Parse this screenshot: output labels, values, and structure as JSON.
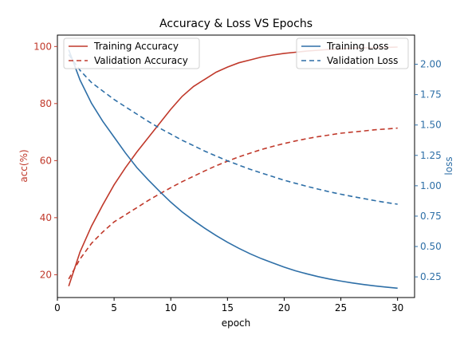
{
  "chart_data": {
    "type": "line",
    "title": "Accuracy & Loss VS Epochs",
    "xlabel": "epoch",
    "ylabel_left": "acc(%)",
    "ylabel_right": "loss",
    "xlim": [
      0,
      31.5
    ],
    "ylim_left": [
      12,
      104
    ],
    "ylim_right": [
      0.08,
      2.24
    ],
    "xticks": [
      0,
      5,
      10,
      15,
      20,
      25,
      30
    ],
    "yticks_left": [
      20,
      40,
      60,
      80,
      100
    ],
    "yticks_right": [
      0.25,
      0.5,
      0.75,
      1.0,
      1.25,
      1.5,
      1.75,
      2.0
    ],
    "yticks_right_labels": [
      "0.25",
      "0.50",
      "0.75",
      "1.00",
      "1.25",
      "1.50",
      "1.75",
      "2.00"
    ],
    "grid": false,
    "colors": {
      "left": "#c0392b",
      "right": "#2e6fa7",
      "left_axis": "#c0392b",
      "right_axis": "#2e6fa7"
    },
    "legend_left_placement": "top-left",
    "legend_right_placement": "top-right",
    "x": [
      1,
      2,
      3,
      4,
      5,
      6,
      7,
      8,
      9,
      10,
      11,
      12,
      13,
      14,
      15,
      16,
      17,
      18,
      19,
      20,
      21,
      22,
      23,
      24,
      25,
      26,
      27,
      28,
      29,
      30
    ],
    "series_left": [
      {
        "name": "Training Accuracy",
        "style": "solid",
        "values": [
          16,
          28,
          37,
          44.5,
          51.5,
          57.5,
          63,
          68,
          73,
          78,
          82.5,
          86,
          88.5,
          91,
          92.8,
          94.3,
          95.3,
          96.3,
          97,
          97.6,
          98,
          98.4,
          98.7,
          99,
          99.2,
          99.4,
          99.5,
          99.6,
          99.7,
          99.8
        ]
      },
      {
        "name": "Validation Accuracy",
        "style": "dashed",
        "values": [
          18.5,
          25.5,
          31,
          35,
          38.5,
          41,
          43.5,
          46,
          48.3,
          50.5,
          52.6,
          54.5,
          56.4,
          58.2,
          59.8,
          61.3,
          62.6,
          63.9,
          65,
          66,
          66.9,
          67.7,
          68.4,
          69,
          69.6,
          70,
          70.4,
          70.8,
          71.1,
          71.4
        ]
      }
    ],
    "series_right": [
      {
        "name": "Training Loss",
        "style": "solid",
        "values": [
          2.12,
          1.87,
          1.68,
          1.53,
          1.4,
          1.27,
          1.15,
          1.05,
          0.955,
          0.865,
          0.785,
          0.715,
          0.65,
          0.59,
          0.535,
          0.485,
          0.44,
          0.4,
          0.365,
          0.33,
          0.3,
          0.275,
          0.252,
          0.232,
          0.215,
          0.2,
          0.187,
          0.176,
          0.166,
          0.157
        ]
      },
      {
        "name": "Validation Loss",
        "style": "dashed",
        "values": [
          2.08,
          1.95,
          1.85,
          1.78,
          1.71,
          1.65,
          1.59,
          1.53,
          1.475,
          1.425,
          1.375,
          1.33,
          1.285,
          1.245,
          1.205,
          1.17,
          1.135,
          1.105,
          1.075,
          1.045,
          1.02,
          0.995,
          0.972,
          0.95,
          0.93,
          0.912,
          0.895,
          0.878,
          0.862,
          0.848
        ]
      }
    ]
  }
}
